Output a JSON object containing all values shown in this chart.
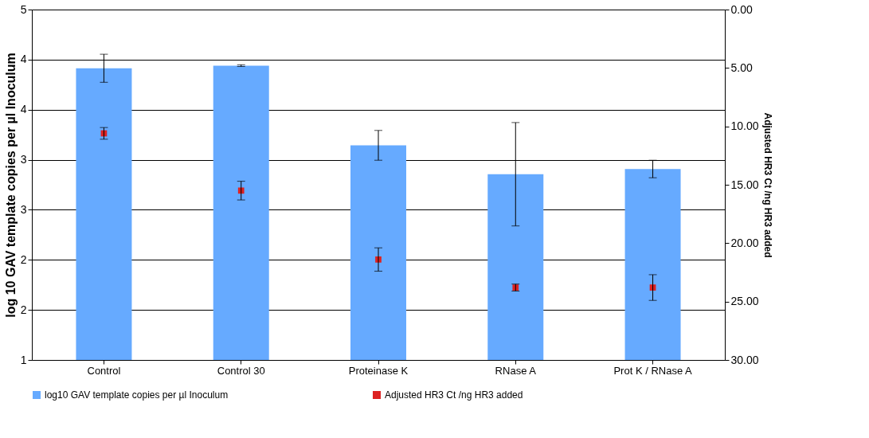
{
  "chart_data": {
    "type": "bar",
    "categories": [
      "Control",
      "Control 30",
      "Proteinase K",
      "RNase A",
      "Prot K / RNase A"
    ],
    "ylabel": "log 10 GAV template copies per µl Inoculum",
    "y2label": "Adjusted HR3 Ct /ng HR3 added",
    "series": [
      {
        "name": "log10 GAV template copies per µl Inoculum",
        "color": "#66aaff",
        "values": [
          4.33,
          4.36,
          3.45,
          3.12,
          3.18
        ],
        "errors": [
          0.16,
          0.01,
          0.17,
          0.59,
          0.1
        ]
      },
      {
        "name": "Adjusted HR3 Ct /ng HR3 added",
        "type": "scatter",
        "axis": "y2",
        "color": "#dd2222",
        "values": [
          10.6,
          15.5,
          21.4,
          23.8,
          23.8
        ],
        "errors": [
          0.5,
          0.8,
          1.0,
          0.3,
          1.1
        ]
      }
    ],
    "ylim": [
      1,
      5
    ],
    "yticks": [
      1,
      {
        "value": 1.571,
        "label": "2"
      },
      {
        "value": 2.143,
        "label": "2"
      },
      {
        "value": 2.714,
        "label": "3"
      },
      {
        "value": 3.286,
        "label": "3"
      },
      {
        "value": 3.857,
        "label": "4"
      },
      {
        "value": 4.429,
        "label": "4"
      },
      5
    ],
    "y2lim": [
      30,
      0
    ],
    "y2ticks": [
      {
        "value": 30,
        "label": "30.00"
      },
      {
        "value": 25,
        "label": "25.00"
      },
      {
        "value": 20,
        "label": "20.00"
      },
      {
        "value": 15,
        "label": "15.00"
      },
      {
        "value": 10,
        "label": "10.00"
      },
      {
        "value": 5,
        "label": "5.00"
      },
      {
        "value": 0,
        "label": "0.00"
      }
    ],
    "grid": "y",
    "legend": "bottom",
    "marker": "square"
  }
}
